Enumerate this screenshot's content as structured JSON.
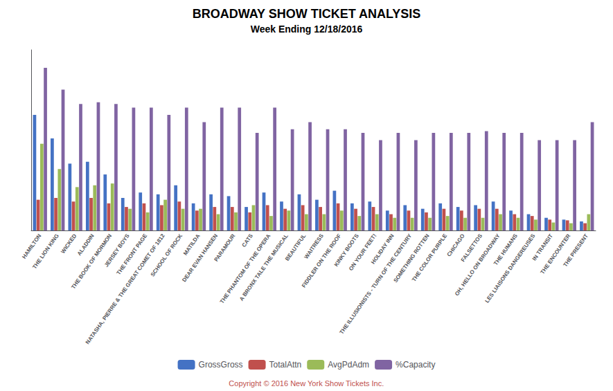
{
  "chart_data": {
    "type": "bar",
    "title": "BROADWAY SHOW TICKET ANALYSIS",
    "subtitle": "Week Ending 12/18/2016",
    "annotations": [
      {
        "text": "Copyright © 2016 New York Show Tickets Inc.",
        "color": "#C0504D"
      }
    ],
    "categories": [
      "HAMILTON",
      "THE LION KING",
      "WICKED",
      "ALADDIN",
      "THE BOOK OF MORMON",
      "JERSEY BOYS",
      "THE FRONT PAGE",
      "NATASHA, PIERRE & THE GREAT COMET OF 1812",
      "SCHOOL OF ROCK",
      "MATILDA",
      "DEAR EVAN HANSEN",
      "PARAMOUR",
      "CATS",
      "THE PHANTOM OF THE OPERA",
      "A BRONX TALE THE MUSICAL",
      "BEAUTIFUL",
      "WAITRESS",
      "FIDDLER ON THE ROOF",
      "KINKY BOOTS",
      "ON YOUR FEET!",
      "HOLIDAY INN",
      "THE ILLUSIONISTS - TURN OF THE CENTURY",
      "SOMETHING ROTTEN",
      "THE COLOR PURPLE",
      "CHICAGO",
      "FALSETTOS",
      "OH, HELLO ON BROADWAY",
      "THE HUMANS",
      "LES LIAISONS DANGEREUSES",
      "IN TRANSIT",
      "THE ENCOUNTER",
      "THE PRESENT"
    ],
    "series": [
      {
        "name": "GrossGross",
        "color": "#4472C4",
        "values": [
          3.2,
          2.55,
          1.85,
          1.9,
          1.55,
          0.9,
          1.05,
          1.0,
          1.25,
          0.75,
          1.0,
          0.95,
          0.65,
          1.05,
          0.8,
          1.0,
          0.85,
          1.1,
          0.75,
          0.8,
          0.55,
          0.7,
          0.6,
          0.75,
          0.65,
          0.7,
          0.8,
          0.55,
          0.45,
          0.35,
          0.3,
          0.25
        ]
      },
      {
        "name": "TotalAttn",
        "color": "#C0504D",
        "values": [
          0.85,
          0.9,
          0.8,
          0.9,
          0.75,
          0.65,
          0.75,
          0.7,
          0.8,
          0.55,
          0.65,
          0.65,
          0.5,
          0.7,
          0.6,
          0.7,
          0.65,
          0.75,
          0.6,
          0.65,
          0.45,
          0.55,
          0.5,
          0.6,
          0.55,
          0.6,
          0.6,
          0.45,
          0.4,
          0.3,
          0.28,
          0.2
        ]
      },
      {
        "name": "AvgPdAdm",
        "color": "#9BBB59",
        "values": [
          2.4,
          1.7,
          1.2,
          1.25,
          1.3,
          0.6,
          0.5,
          0.85,
          0.6,
          0.6,
          0.45,
          0.5,
          0.7,
          0.4,
          0.55,
          0.45,
          0.45,
          0.55,
          0.4,
          0.45,
          0.35,
          0.35,
          0.35,
          0.4,
          0.35,
          0.35,
          0.45,
          0.35,
          0.3,
          0.22,
          0.2,
          0.45
        ]
      },
      {
        "name": "%Capacity",
        "color": "#8064A2",
        "values": [
          4.5,
          3.9,
          3.5,
          3.55,
          3.5,
          3.4,
          3.4,
          3.2,
          3.4,
          3.0,
          3.4,
          3.4,
          2.7,
          3.4,
          2.8,
          3.0,
          2.8,
          2.8,
          2.7,
          2.5,
          2.7,
          2.5,
          2.7,
          2.7,
          2.7,
          2.75,
          2.7,
          2.7,
          2.5,
          2.5,
          2.5,
          3.0
        ]
      }
    ],
    "ylim": [
      0,
      5.0
    ],
    "grid": false,
    "tick_labels": "x",
    "legend": "bottom"
  }
}
